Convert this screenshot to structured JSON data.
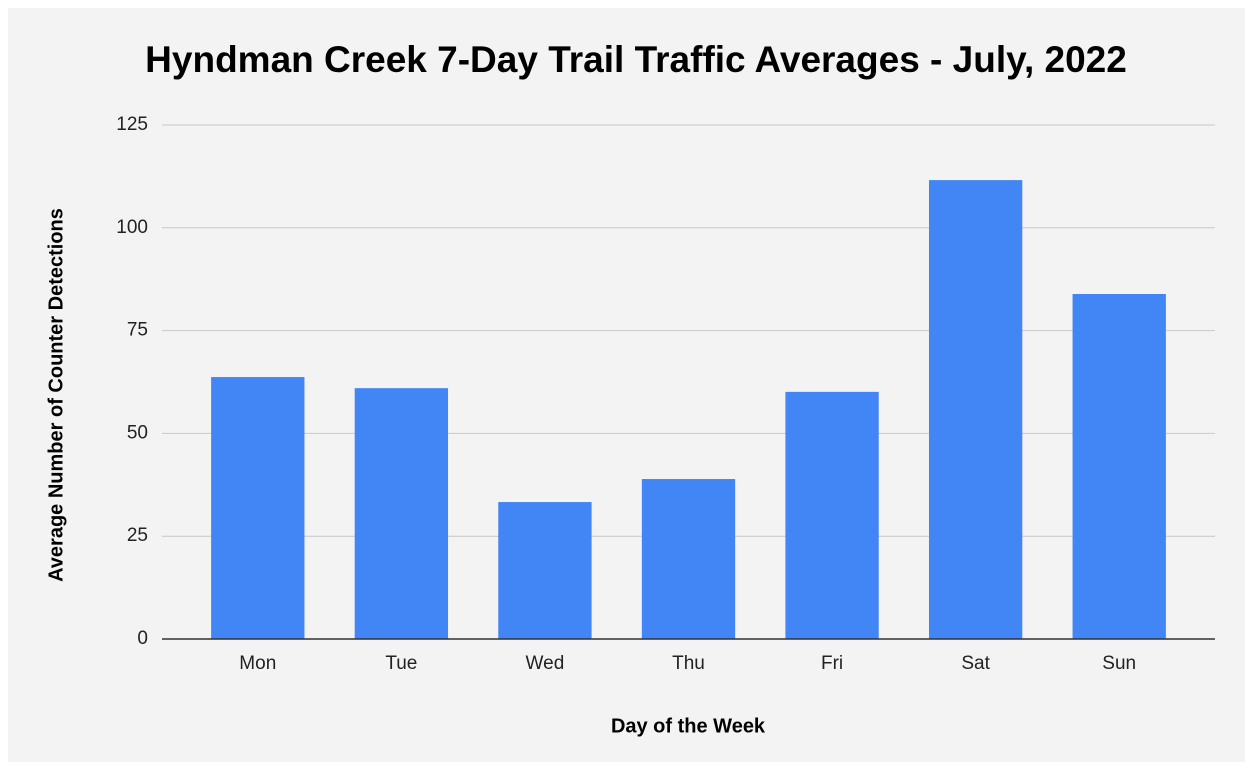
{
  "chart_data": {
    "type": "bar",
    "title": "Hyndman Creek 7-Day Trail Traffic Averages - July, 2022",
    "x_label": "Day of the Week",
    "y_label": "Average Number of Counter Detections",
    "categories": [
      "Mon",
      "Tue",
      "Wed",
      "Thu",
      "Fri",
      "Sat",
      "Sun"
    ],
    "values": [
      63.7,
      61.0,
      33.3,
      38.9,
      60.1,
      111.6,
      83.9
    ],
    "color": "#4285f4",
    "ylim": [
      0,
      125
    ],
    "yticks": [
      0,
      25,
      50,
      75,
      100,
      125
    ],
    "grid": true
  }
}
